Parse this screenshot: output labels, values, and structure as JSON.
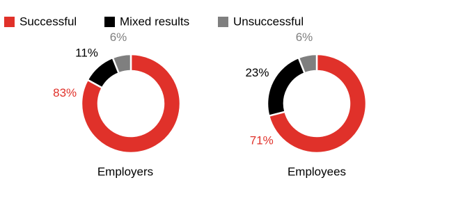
{
  "chart_data": [
    {
      "type": "pie",
      "title": "Employers",
      "categories": [
        "Successful",
        "Mixed results",
        "Unsuccessful"
      ],
      "values": [
        83,
        11,
        6
      ],
      "value_labels": [
        "83%",
        "11%",
        "6%"
      ],
      "colors": [
        "#e0312a",
        "#000000",
        "#7f7f7f"
      ]
    },
    {
      "type": "pie",
      "title": "Employees",
      "values": [
        71,
        23,
        6
      ],
      "value_labels": [
        "71%",
        "23%",
        "6%"
      ],
      "colors": [
        "#e0312a",
        "#000000",
        "#7f7f7f"
      ]
    }
  ]
}
